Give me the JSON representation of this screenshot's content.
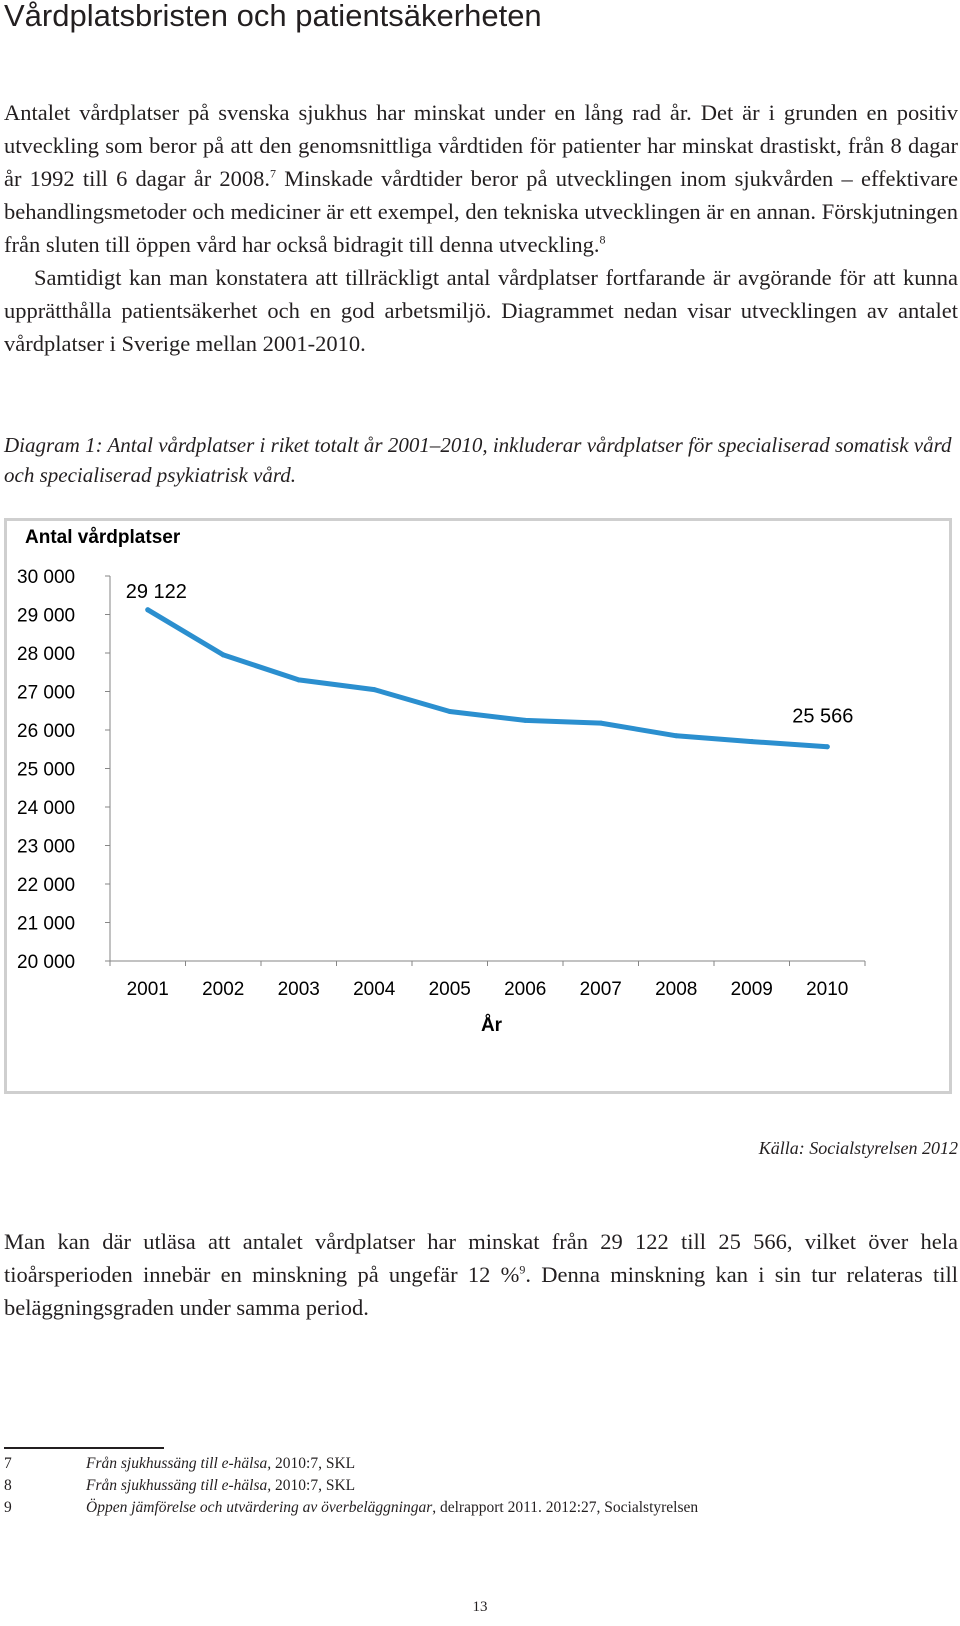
{
  "heading": "Vårdplatsbristen och patientsäkerheten",
  "intro": {
    "part1": "Antalet vårdplatser på svenska sjukhus har minskat under en lång rad år. Det är i grunden en positiv utveckling som beror på att den genomsnittliga vårdtiden för patienter har minskat drastiskt, från 8 dagar år 1992 till 6 dagar år 2008.",
    "ref1": "7",
    "part2": " Minskade vårdtider beror på utvecklingen inom sjukvården – effektivare behandlingsmetoder och mediciner är ett exempel, den tekniska utvecklingen är en annan. Förskjutningen från sluten till öppen vård har också bidragit till denna utveckling.",
    "ref2": "8",
    "part3": "Samtidigt kan man konstatera att tillräckligt antal vårdplatser fortfarande är avgörande för att kunna upprätthålla patientsäkerhet och en god arbetsmiljö. Diagrammet nedan visar utvecklingen av antalet vårdplatser i Sverige mellan 2001-2010."
  },
  "caption": "Diagram 1: Antal vårdplatser i riket totalt år 2001–2010, inkluderar vårdplatser för specialiserad somatisk vård och specialiserad psykiatrisk vård.",
  "chart_data": {
    "type": "line",
    "title": "",
    "ylabel": "Antal vårdplatser",
    "xlabel": "År",
    "x": [
      "2001",
      "2002",
      "2003",
      "2004",
      "2005",
      "2006",
      "2007",
      "2008",
      "2009",
      "2010"
    ],
    "series": [
      {
        "values": [
          29122,
          27950,
          27300,
          27050,
          26480,
          26250,
          26180,
          25850,
          25700,
          25566
        ],
        "color": "#2b8fcf"
      }
    ],
    "ylim": [
      20000,
      30000
    ],
    "yticks": [
      20000,
      21000,
      22000,
      23000,
      24000,
      25000,
      26000,
      27000,
      28000,
      29000,
      30000
    ],
    "ytick_labels": [
      "20 000",
      "21 000",
      "22 000",
      "23 000",
      "24 000",
      "25 000",
      "26 000",
      "27 000",
      "28 000",
      "29 000",
      "30 000"
    ],
    "annotations": [
      {
        "label": "29 122",
        "x": "2001",
        "y": 29122
      },
      {
        "label": "25 566",
        "x": "2010",
        "y": 25566
      }
    ],
    "grid": false,
    "legend": "none"
  },
  "source": "Källa: Socialstyrelsen 2012",
  "conclusion": {
    "part1": "Man kan där utläsa att antalet vårdplatser har minskat från 29 122 till 25 566, vilket över hela tioårsperioden innebär en minskning på ungefär 12 %",
    "ref": "9",
    "part2": ". Denna minskning kan i sin tur relateras till beläggningsgraden under samma period."
  },
  "footnotes": [
    {
      "num": "7",
      "title": "Från sjukhussäng till e-hälsa,",
      "rest": " 2010:7, SKL"
    },
    {
      "num": "8",
      "title": "Från sjukhussäng till e-hälsa,",
      "rest": " 2010:7, SKL"
    },
    {
      "num": "9",
      "title": "Öppen jämförelse och utvärdering av överbeläggningar",
      "rest": ", delrapport 2011. 2012:27, Socialstyrelsen"
    }
  ],
  "page_number": "13"
}
